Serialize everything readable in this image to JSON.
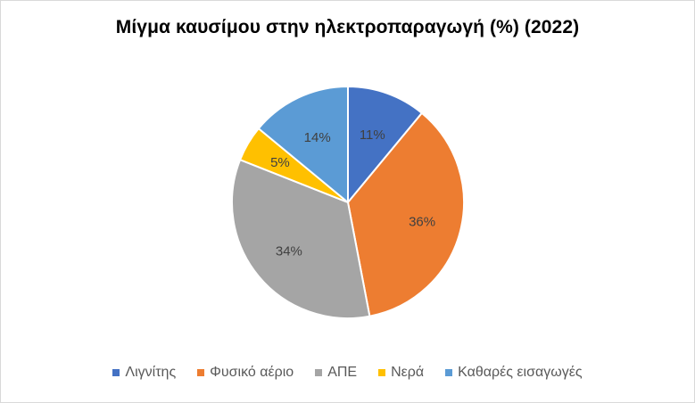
{
  "chart_data": {
    "type": "pie",
    "title": "Μίγμα καυσίμου στην ηλεκτροπαραγωγή (%) (2022)",
    "categories": [
      "Λιγνίτης",
      "Φυσικό αέριο",
      "ΑΠΕ",
      "Νερά",
      "Καθαρές εισαγωγές"
    ],
    "values": [
      11,
      36,
      34,
      5,
      14
    ],
    "labels": [
      "11%",
      "36%",
      "34%",
      "5%",
      "14%"
    ],
    "colors": [
      "#4472c4",
      "#ed7d31",
      "#a5a5a5",
      "#ffc000",
      "#5b9bd5"
    ],
    "legend_position": "bottom"
  }
}
